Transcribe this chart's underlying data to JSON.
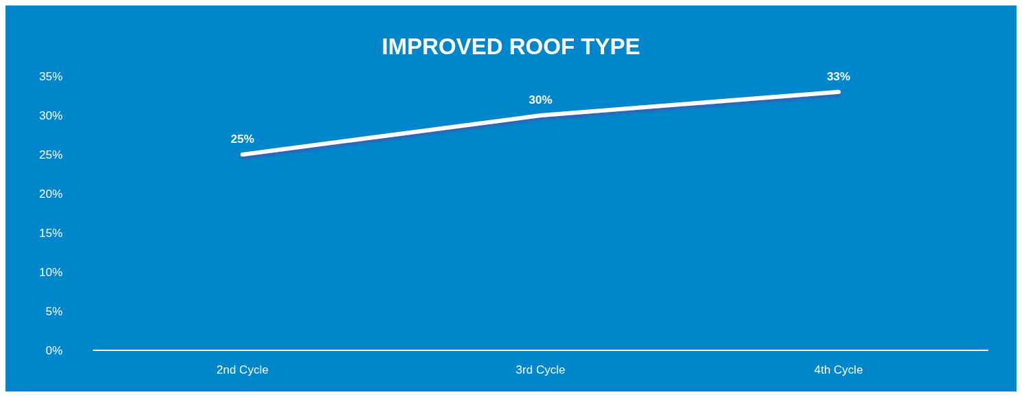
{
  "chart_data": {
    "type": "line",
    "title": "IMPROVED ROOF TYPE",
    "categories": [
      "2nd Cycle",
      "3rd Cycle",
      "4th Cycle"
    ],
    "series": [
      {
        "color": "#ffffff",
        "values": [
          25,
          30,
          33
        ]
      }
    ],
    "ylim": [
      0,
      35
    ],
    "yticks": [
      {
        "value": 0,
        "label": "0%"
      },
      {
        "value": 5,
        "label": "5%"
      },
      {
        "value": 10,
        "label": "10%"
      },
      {
        "value": 15,
        "label": "15%"
      },
      {
        "value": 20,
        "label": "20%"
      },
      {
        "value": 25,
        "label": "25%"
      },
      {
        "value": 30,
        "label": "30%"
      },
      {
        "value": 35,
        "label": "35%"
      }
    ],
    "value_labels": [
      "25%",
      "30%",
      "33%"
    ],
    "grid": false,
    "marker": "none",
    "line_style": "solid"
  }
}
